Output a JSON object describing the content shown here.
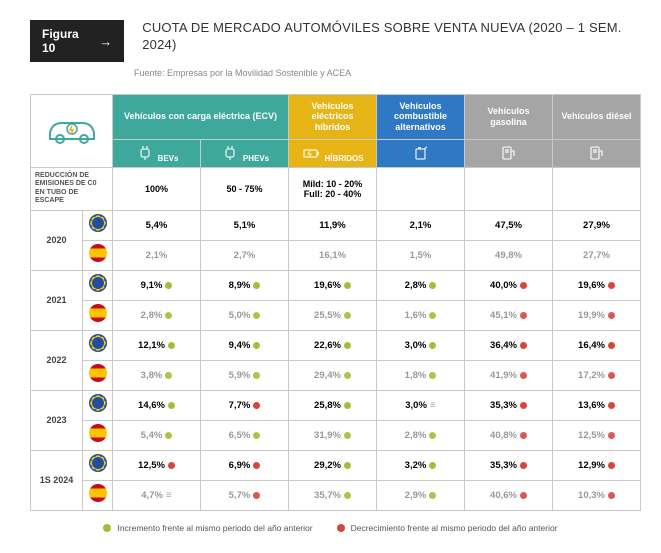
{
  "badge": {
    "label": "Figura 10",
    "arrow": "→"
  },
  "title": "CUOTA DE MERCADO AUTOMÓVILES SOBRE VENTA NUEVA (2020 – 1 SEM. 2024)",
  "source": "Fuente: Empresas por la Movilidad Sostenible y ACEA",
  "colors": {
    "teal": "#3fa89c",
    "gold": "#e7b416",
    "blue": "#2f78c4",
    "gray": "#a5a5a5",
    "inc": "#9fbf3b",
    "dec": "#d9453d",
    "border": "#c9c9c9",
    "dim_text": "#999999",
    "text": "#333333"
  },
  "columns": [
    {
      "key": "bev",
      "group": "Vehículos con carga eléctrica (ECV)",
      "sub": "BEVs",
      "bg": "teal"
    },
    {
      "key": "phev",
      "group": "Vehículos con carga eléctrica (ECV)",
      "sub": "PHEVs",
      "bg": "teal"
    },
    {
      "key": "hyb",
      "group": "Vehículos eléctricos híbridos",
      "sub": "HÍBRIDOS",
      "bg": "gold"
    },
    {
      "key": "alt",
      "group": "Vehículos combustible alternativos",
      "sub": "",
      "bg": "blue"
    },
    {
      "key": "gas",
      "group": "Vehículos gasolina",
      "sub": "",
      "bg": "gray"
    },
    {
      "key": "die",
      "group": "Vehículos diésel",
      "sub": "",
      "bg": "gray"
    }
  ],
  "emissions": {
    "label": "REDUCCIÓN DE EMISIONES DE C0 EN TUBO DE ESCAPE",
    "values": {
      "bev": "100%",
      "phev": "50 - 75%",
      "hyb": "Mild: 10 - 20%\nFull: 20 - 40%",
      "alt": "",
      "gas": "",
      "die": ""
    }
  },
  "years": [
    "2020",
    "2021",
    "2022",
    "2023",
    "1S 2024"
  ],
  "data": {
    "2020": {
      "eu": {
        "bev": {
          "v": "5,4%"
        },
        "phev": {
          "v": "5,1%"
        },
        "hyb": {
          "v": "11,9%"
        },
        "alt": {
          "v": "2,1%"
        },
        "gas": {
          "v": "47,5%"
        },
        "die": {
          "v": "27,9%"
        }
      },
      "es": {
        "bev": {
          "v": "2,1%"
        },
        "phev": {
          "v": "2,7%"
        },
        "hyb": {
          "v": "16,1%"
        },
        "alt": {
          "v": "1,5%"
        },
        "gas": {
          "v": "49,8%"
        },
        "die": {
          "v": "27,7%"
        }
      }
    },
    "2021": {
      "eu": {
        "bev": {
          "v": "9,1%",
          "t": "inc"
        },
        "phev": {
          "v": "8,9%",
          "t": "inc"
        },
        "hyb": {
          "v": "19,6%",
          "t": "inc"
        },
        "alt": {
          "v": "2,8%",
          "t": "inc"
        },
        "gas": {
          "v": "40,0%",
          "t": "dec"
        },
        "die": {
          "v": "19,6%",
          "t": "dec"
        }
      },
      "es": {
        "bev": {
          "v": "2,8%",
          "t": "inc"
        },
        "phev": {
          "v": "5,0%",
          "t": "inc"
        },
        "hyb": {
          "v": "25,5%",
          "t": "inc"
        },
        "alt": {
          "v": "1,6%",
          "t": "inc"
        },
        "gas": {
          "v": "45,1%",
          "t": "dec"
        },
        "die": {
          "v": "19,9%",
          "t": "dec"
        }
      }
    },
    "2022": {
      "eu": {
        "bev": {
          "v": "12,1%",
          "t": "inc"
        },
        "phev": {
          "v": "9,4%",
          "t": "inc"
        },
        "hyb": {
          "v": "22,6%",
          "t": "inc"
        },
        "alt": {
          "v": "3,0%",
          "t": "inc"
        },
        "gas": {
          "v": "36,4%",
          "t": "dec"
        },
        "die": {
          "v": "16,4%",
          "t": "dec"
        }
      },
      "es": {
        "bev": {
          "v": "3,8%",
          "t": "inc"
        },
        "phev": {
          "v": "5,9%",
          "t": "inc"
        },
        "hyb": {
          "v": "29,4%",
          "t": "inc"
        },
        "alt": {
          "v": "1,8%",
          "t": "inc"
        },
        "gas": {
          "v": "41,9%",
          "t": "dec"
        },
        "die": {
          "v": "17,2%",
          "t": "dec"
        }
      }
    },
    "2023": {
      "eu": {
        "bev": {
          "v": "14,6%",
          "t": "inc"
        },
        "phev": {
          "v": "7,7%",
          "t": "dec"
        },
        "hyb": {
          "v": "25,8%",
          "t": "inc"
        },
        "alt": {
          "v": "3,0%",
          "t": "eq"
        },
        "gas": {
          "v": "35,3%",
          "t": "dec"
        },
        "die": {
          "v": "13,6%",
          "t": "dec"
        }
      },
      "es": {
        "bev": {
          "v": "5,4%",
          "t": "inc"
        },
        "phev": {
          "v": "6,5%",
          "t": "inc"
        },
        "hyb": {
          "v": "31,9%",
          "t": "inc"
        },
        "alt": {
          "v": "2,8%",
          "t": "inc"
        },
        "gas": {
          "v": "40,8%",
          "t": "dec"
        },
        "die": {
          "v": "12,5%",
          "t": "dec"
        }
      }
    },
    "1S 2024": {
      "eu": {
        "bev": {
          "v": "12,5%",
          "t": "dec"
        },
        "phev": {
          "v": "6,9%",
          "t": "dec"
        },
        "hyb": {
          "v": "29,2%",
          "t": "inc"
        },
        "alt": {
          "v": "3,2%",
          "t": "inc"
        },
        "gas": {
          "v": "35,3%",
          "t": "dec"
        },
        "die": {
          "v": "12,9%",
          "t": "dec"
        }
      },
      "es": {
        "bev": {
          "v": "4,7%",
          "t": "eq"
        },
        "phev": {
          "v": "5,7%",
          "t": "dec"
        },
        "hyb": {
          "v": "35,7%",
          "t": "inc"
        },
        "alt": {
          "v": "2,9%",
          "t": "inc"
        },
        "gas": {
          "v": "40,6%",
          "t": "dec"
        },
        "die": {
          "v": "10,3%",
          "t": "dec"
        }
      }
    }
  },
  "legend": {
    "inc": "Incremento frente al mismo periodo del año anterior",
    "dec": "Decrecimiento frente al mismo periodo del año anterior"
  }
}
